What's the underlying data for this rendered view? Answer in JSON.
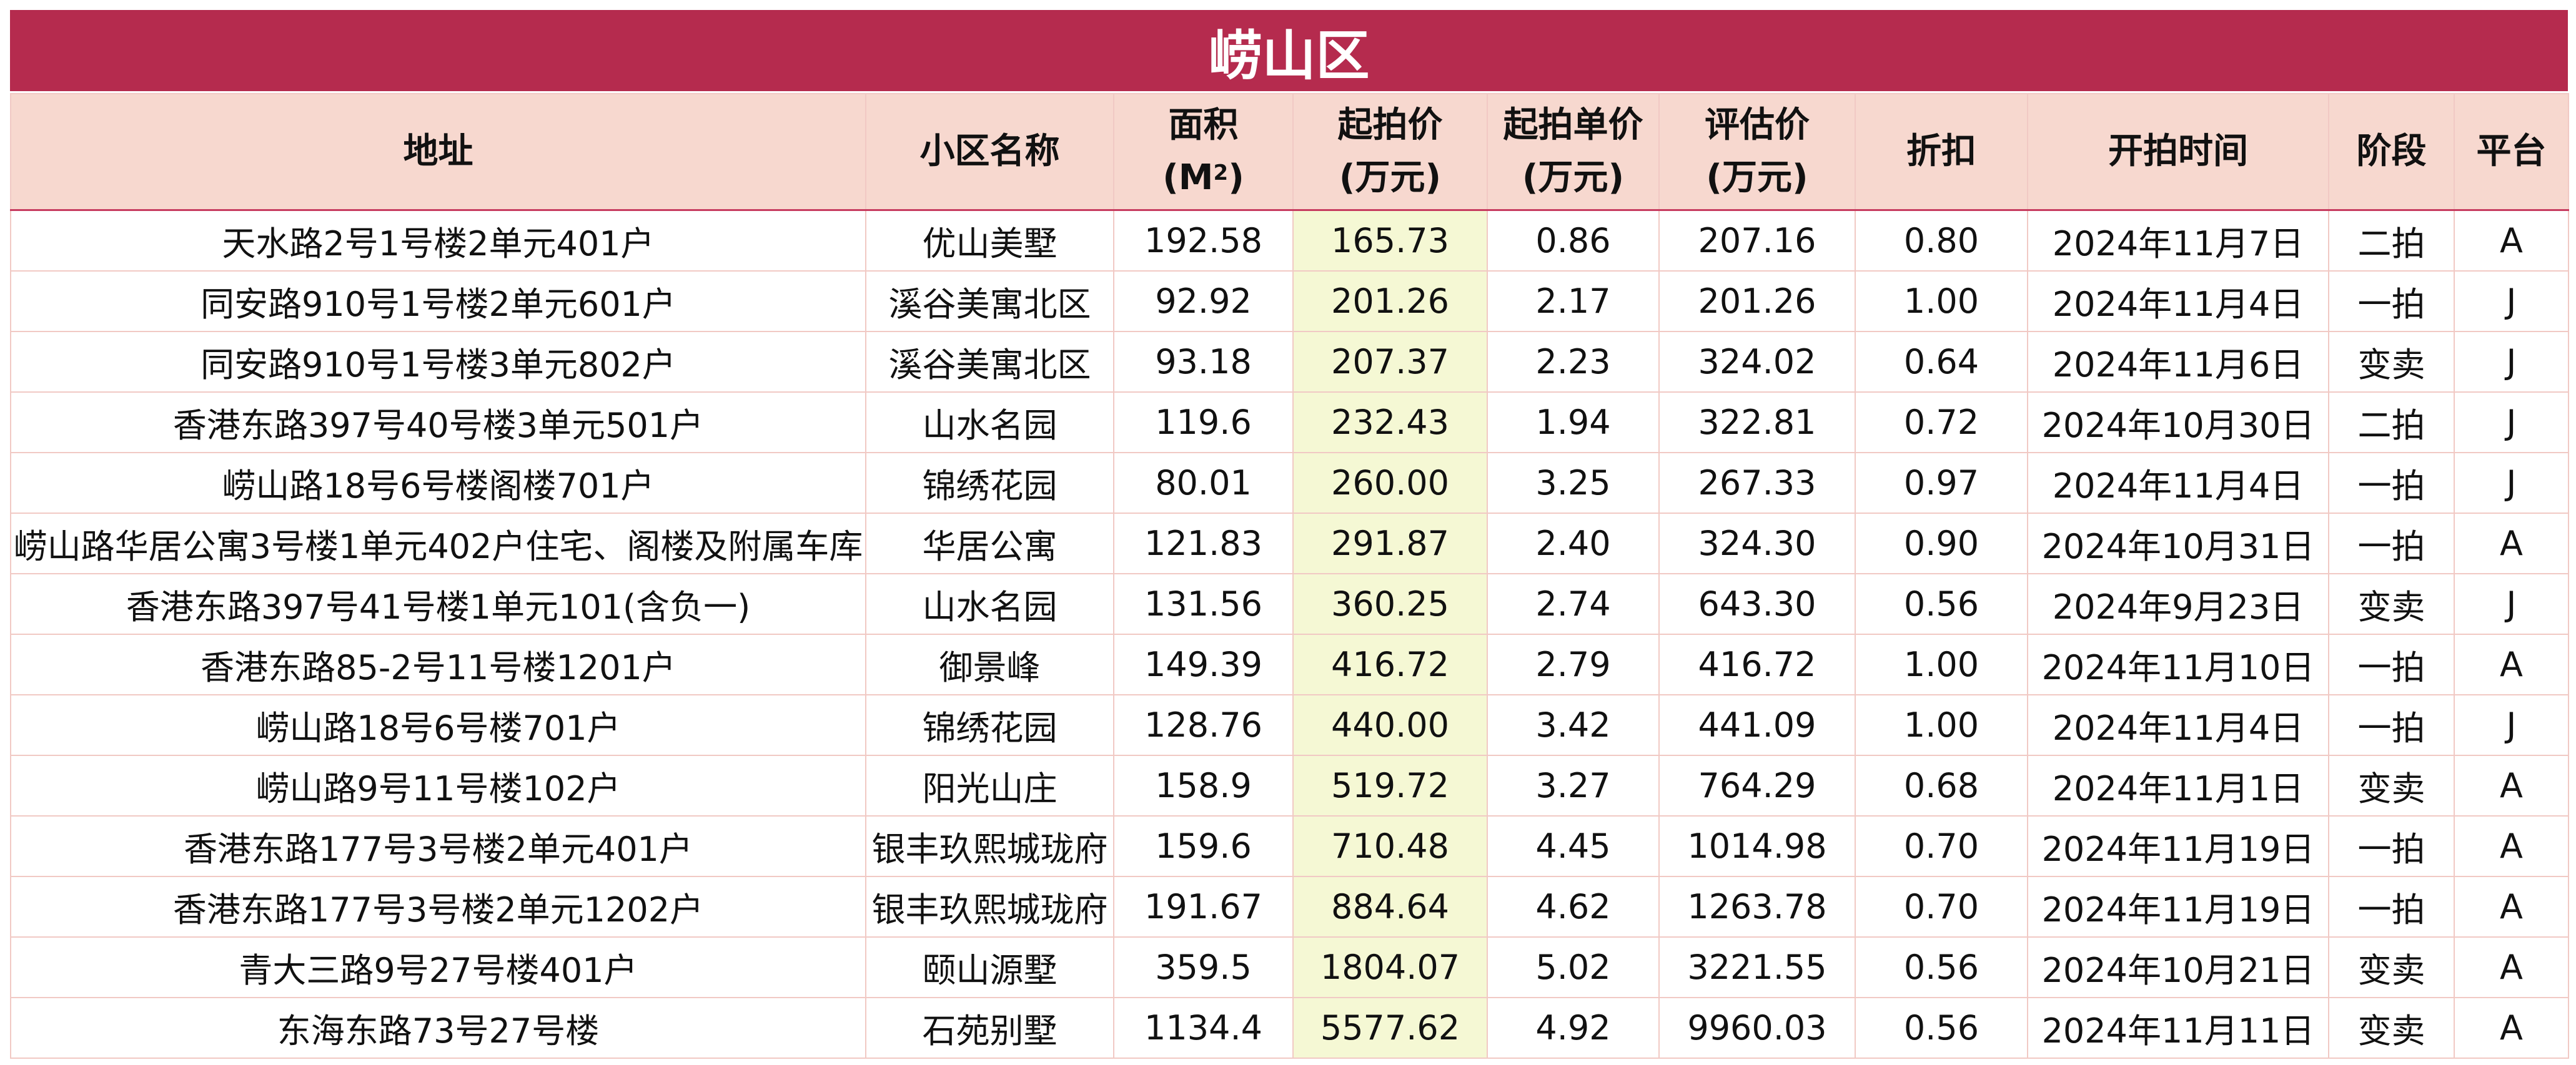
{
  "title": "崂山区",
  "headers": {
    "address": "地址",
    "community": "小区名称",
    "area_line1": "面积",
    "area_line2_base": "(M",
    "area_sup": "2",
    "area_line2_end": ")",
    "start_price_line1": "起拍价",
    "start_price_line2": "(万元)",
    "unit_price_line1": "起拍单价",
    "unit_price_line2": "(万元)",
    "appraisal_line1": "评估价",
    "appraisal_line2": "(万元)",
    "discount": "折扣",
    "auction_time": "开拍时间",
    "stage": "阶段",
    "platform": "平台"
  },
  "rows": [
    {
      "address": "天水路2号1号楼2单元401户",
      "community": "优山美墅",
      "area": "192.58",
      "start_price": "165.73",
      "unit_price": "0.86",
      "appraisal": "207.16",
      "discount": "0.80",
      "time": "2024年11月7日",
      "stage": "二拍",
      "platform": "A"
    },
    {
      "address": "同安路910号1号楼2单元601户",
      "community": "溪谷美寓北区",
      "area": "92.92",
      "start_price": "201.26",
      "unit_price": "2.17",
      "appraisal": "201.26",
      "discount": "1.00",
      "time": "2024年11月4日",
      "stage": "一拍",
      "platform": "J"
    },
    {
      "address": "同安路910号1号楼3单元802户",
      "community": "溪谷美寓北区",
      "area": "93.18",
      "start_price": "207.37",
      "unit_price": "2.23",
      "appraisal": "324.02",
      "discount": "0.64",
      "time": "2024年11月6日",
      "stage": "变卖",
      "platform": "J"
    },
    {
      "address": "香港东路397号40号楼3单元501户",
      "community": "山水名园",
      "area": "119.6",
      "start_price": "232.43",
      "unit_price": "1.94",
      "appraisal": "322.81",
      "discount": "0.72",
      "time": "2024年10月30日",
      "stage": "二拍",
      "platform": "J"
    },
    {
      "address": "崂山路18号6号楼阁楼701户",
      "community": "锦绣花园",
      "area": "80.01",
      "start_price": "260.00",
      "unit_price": "3.25",
      "appraisal": "267.33",
      "discount": "0.97",
      "time": "2024年11月4日",
      "stage": "一拍",
      "platform": "J"
    },
    {
      "address": "崂山路华居公寓3号楼1单元402户住宅、阁楼及附属车库",
      "community": "华居公寓",
      "area": "121.83",
      "start_price": "291.87",
      "unit_price": "2.40",
      "appraisal": "324.30",
      "discount": "0.90",
      "time": "2024年10月31日",
      "stage": "一拍",
      "platform": "A"
    },
    {
      "address": "香港东路397号41号楼1单元101(含负一)",
      "community": "山水名园",
      "area": "131.56",
      "start_price": "360.25",
      "unit_price": "2.74",
      "appraisal": "643.30",
      "discount": "0.56",
      "time": "2024年9月23日",
      "stage": "变卖",
      "platform": "J"
    },
    {
      "address": "香港东路85-2号11号楼1201户",
      "community": "御景峰",
      "area": "149.39",
      "start_price": "416.72",
      "unit_price": "2.79",
      "appraisal": "416.72",
      "discount": "1.00",
      "time": "2024年11月10日",
      "stage": "一拍",
      "platform": "A"
    },
    {
      "address": "崂山路18号6号楼701户",
      "community": "锦绣花园",
      "area": "128.76",
      "start_price": "440.00",
      "unit_price": "3.42",
      "appraisal": "441.09",
      "discount": "1.00",
      "time": "2024年11月4日",
      "stage": "一拍",
      "platform": "J"
    },
    {
      "address": "崂山路9号11号楼102户",
      "community": "阳光山庄",
      "area": "158.9",
      "start_price": "519.72",
      "unit_price": "3.27",
      "appraisal": "764.29",
      "discount": "0.68",
      "time": "2024年11月1日",
      "stage": "变卖",
      "platform": "A"
    },
    {
      "address": "香港东路177号3号楼2单元401户",
      "community": "银丰玖熙城珑府",
      "area": "159.6",
      "start_price": "710.48",
      "unit_price": "4.45",
      "appraisal": "1014.98",
      "discount": "0.70",
      "time": "2024年11月19日",
      "stage": "一拍",
      "platform": "A"
    },
    {
      "address": "香港东路177号3号楼2单元1202户",
      "community": "银丰玖熙城珑府",
      "area": "191.67",
      "start_price": "884.64",
      "unit_price": "4.62",
      "appraisal": "1263.78",
      "discount": "0.70",
      "time": "2024年11月19日",
      "stage": "一拍",
      "platform": "A"
    },
    {
      "address": "青大三路9号27号楼401户",
      "community": "颐山源墅",
      "area": "359.5",
      "start_price": "1804.07",
      "unit_price": "5.02",
      "appraisal": "3221.55",
      "discount": "0.56",
      "time": "2024年10月21日",
      "stage": "变卖",
      "platform": "A"
    },
    {
      "address": "东海东路73号27号楼",
      "community": "石苑别墅",
      "area": "1134.4",
      "start_price": "5577.62",
      "unit_price": "4.92",
      "appraisal": "9960.03",
      "discount": "0.56",
      "time": "2024年11月11日",
      "stage": "变卖",
      "platform": "A"
    }
  ]
}
